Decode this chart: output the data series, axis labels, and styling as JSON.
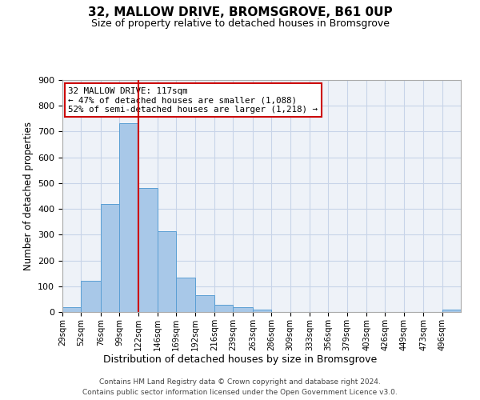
{
  "title": "32, MALLOW DRIVE, BROMSGROVE, B61 0UP",
  "subtitle": "Size of property relative to detached houses in Bromsgrove",
  "xlabel": "Distribution of detached houses by size in Bromsgrove",
  "ylabel": "Number of detached properties",
  "bar_labels": [
    "29sqm",
    "52sqm",
    "76sqm",
    "99sqm",
    "122sqm",
    "146sqm",
    "169sqm",
    "192sqm",
    "216sqm",
    "239sqm",
    "263sqm",
    "286sqm",
    "309sqm",
    "333sqm",
    "356sqm",
    "379sqm",
    "403sqm",
    "426sqm",
    "449sqm",
    "473sqm",
    "496sqm"
  ],
  "bar_values": [
    20,
    122,
    418,
    733,
    480,
    315,
    133,
    65,
    28,
    20,
    10,
    0,
    0,
    0,
    0,
    0,
    0,
    0,
    0,
    0,
    8
  ],
  "bar_edges": [
    29,
    52,
    76,
    99,
    122,
    146,
    169,
    192,
    216,
    239,
    263,
    286,
    309,
    333,
    356,
    379,
    403,
    426,
    449,
    473,
    496
  ],
  "bar_color": "#a8c8e8",
  "bar_edge_color": "#5a9fd4",
  "vline_x": 122,
  "vline_color": "#cc0000",
  "annotation_line1": "32 MALLOW DRIVE: 117sqm",
  "annotation_line2": "← 47% of detached houses are smaller (1,088)",
  "annotation_line3": "52% of semi-detached houses are larger (1,218) →",
  "annotation_box_color": "#cc0000",
  "ylim": [
    0,
    900
  ],
  "yticks": [
    0,
    100,
    200,
    300,
    400,
    500,
    600,
    700,
    800,
    900
  ],
  "grid_color": "#c8d4e8",
  "bg_color": "#eef2f8",
  "footer1": "Contains HM Land Registry data © Crown copyright and database right 2024.",
  "footer2": "Contains public sector information licensed under the Open Government Licence v3.0."
}
